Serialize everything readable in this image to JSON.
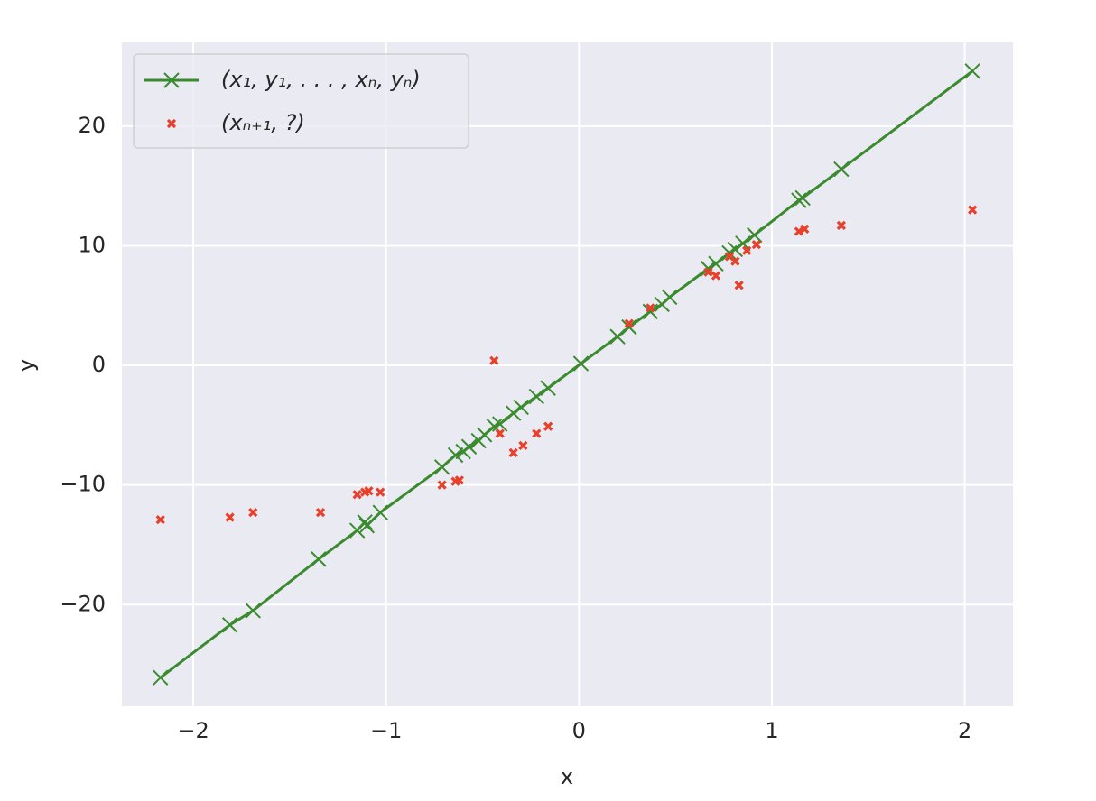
{
  "chart_data": {
    "type": "scatter",
    "x_label": "x",
    "y_label": "y",
    "xlim": [
      -2.37,
      2.25
    ],
    "ylim": [
      -28.5,
      27.0
    ],
    "xticks": [
      {
        "value": -2,
        "label": "−2"
      },
      {
        "value": -1,
        "label": "−1"
      },
      0,
      1,
      2
    ],
    "yticks": [
      {
        "value": -20,
        "label": "−20"
      },
      {
        "value": -10,
        "label": "−10"
      },
      0,
      10,
      20
    ],
    "grid": true,
    "background": "#eaeaf2",
    "legend": "upper left",
    "series": [
      {
        "name": "(x₁, y₁, . . . , xₙ, yₙ)",
        "color": "#3a8a2e",
        "mode": "lines+markers",
        "x": [
          -2.17,
          -1.81,
          -1.69,
          -1.35,
          -1.15,
          -1.11,
          -1.1,
          -1.03,
          -0.71,
          -0.64,
          -0.6,
          -0.57,
          -0.52,
          -0.49,
          -0.44,
          -0.41,
          -0.34,
          -0.3,
          -0.22,
          -0.16,
          0.01,
          0.2,
          0.26,
          0.37,
          0.43,
          0.47,
          0.67,
          0.71,
          0.78,
          0.81,
          0.85,
          0.91,
          1.14,
          1.16,
          1.36,
          2.04
        ],
        "values": [
          -26.1,
          -21.7,
          -20.5,
          -16.2,
          -13.8,
          -13.1,
          -13.4,
          -12.3,
          -8.5,
          -7.5,
          -7.2,
          -6.8,
          -6.3,
          -5.8,
          -5.1,
          -4.9,
          -4.0,
          -3.5,
          -2.6,
          -1.9,
          0.15,
          2.4,
          3.2,
          4.5,
          5.1,
          5.7,
          8.1,
          8.5,
          9.4,
          9.7,
          10.2,
          10.9,
          13.8,
          14.0,
          16.4,
          24.6
        ]
      },
      {
        "name": "(xₙ₊₁, ?)",
        "color": "#e8402a",
        "mode": "markers",
        "x": [
          -2.17,
          -1.81,
          -1.69,
          -1.34,
          -1.15,
          -1.11,
          -1.09,
          -1.03,
          -0.71,
          -0.64,
          -0.62,
          -0.44,
          -0.41,
          -0.34,
          -0.29,
          -0.22,
          -0.16,
          0.26,
          0.37,
          0.67,
          0.71,
          0.78,
          0.81,
          0.83,
          0.87,
          0.92,
          1.14,
          1.17,
          1.36,
          2.04
        ],
        "values": [
          -12.9,
          -12.7,
          -12.3,
          -12.3,
          -10.8,
          -10.6,
          -10.5,
          -10.6,
          -10.0,
          -9.7,
          -9.6,
          0.4,
          -5.7,
          -7.3,
          -6.7,
          -5.7,
          -5.1,
          3.5,
          4.8,
          7.8,
          7.5,
          9.1,
          8.7,
          6.7,
          9.6,
          10.1,
          11.2,
          11.4,
          11.7,
          13.0
        ]
      }
    ]
  }
}
